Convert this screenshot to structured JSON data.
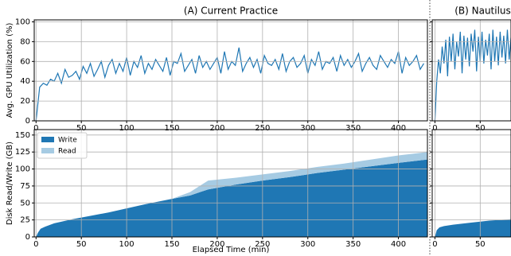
{
  "chart_data": [
    {
      "type": "line",
      "title": "(A) Current Practice",
      "ylabel": "Avg. GPU Utilization (%)",
      "x": [
        0,
        4,
        8,
        12,
        16,
        20,
        24,
        28,
        32,
        36,
        40,
        44,
        48,
        52,
        56,
        60,
        64,
        68,
        72,
        76,
        80,
        84,
        88,
        92,
        96,
        100,
        104,
        108,
        112,
        116,
        120,
        124,
        128,
        132,
        136,
        140,
        144,
        148,
        152,
        156,
        160,
        164,
        168,
        172,
        176,
        180,
        184,
        188,
        192,
        196,
        200,
        204,
        208,
        212,
        216,
        220,
        224,
        228,
        232,
        236,
        240,
        244,
        248,
        252,
        256,
        260,
        264,
        268,
        272,
        276,
        280,
        284,
        288,
        292,
        296,
        300,
        304,
        308,
        312,
        316,
        320,
        324,
        328,
        332,
        336,
        340,
        344,
        348,
        352,
        356,
        360,
        364,
        368,
        372,
        376,
        380,
        384,
        388,
        392,
        396,
        400,
        404,
        408,
        412,
        416,
        420,
        424,
        428
      ],
      "values": [
        0,
        34,
        38,
        36,
        42,
        40,
        48,
        38,
        52,
        44,
        46,
        50,
        42,
        55,
        48,
        58,
        45,
        52,
        60,
        44,
        56,
        62,
        48,
        58,
        50,
        64,
        46,
        60,
        54,
        66,
        48,
        58,
        52,
        62,
        56,
        50,
        64,
        46,
        60,
        58,
        68,
        50,
        56,
        62,
        48,
        66,
        54,
        60,
        52,
        58,
        64,
        48,
        70,
        52,
        60,
        56,
        74,
        50,
        58,
        64,
        54,
        62,
        48,
        66,
        58,
        56,
        62,
        52,
        68,
        50,
        60,
        64,
        54,
        58,
        66,
        48,
        62,
        56,
        70,
        52,
        60,
        58,
        64,
        50,
        66,
        56,
        62,
        54,
        60,
        68,
        50,
        58,
        64,
        56,
        52,
        66,
        60,
        54,
        62,
        58,
        70,
        48,
        64,
        56,
        60,
        66,
        52,
        58
      ],
      "color": "#1f77b4",
      "xlim": [
        -2,
        432
      ],
      "ylim": [
        0,
        102
      ],
      "xticks": [
        0,
        50,
        100,
        150,
        200,
        250,
        300,
        350,
        400
      ],
      "yticks": [
        0,
        20,
        40,
        60,
        80,
        100
      ],
      "grid": true
    },
    {
      "type": "area",
      "xlabel": "Elapsed Time (min)",
      "ylabel": "Disk Read/Write (GB)",
      "x": [
        0,
        2,
        5,
        10,
        20,
        40,
        60,
        80,
        100,
        120,
        150,
        170,
        190,
        220,
        250,
        280,
        310,
        340,
        370,
        400,
        432
      ],
      "series": [
        {
          "name": "Write",
          "color": "#1f77b4",
          "values": [
            0,
            6,
            12,
            15,
            20,
            26,
            31,
            36,
            42,
            48,
            56,
            61,
            70,
            77,
            83,
            88,
            94,
            99,
            104,
            109,
            114
          ]
        },
        {
          "name": "Read",
          "color": "#a6cbe3",
          "values": [
            0,
            0,
            0,
            0,
            0,
            0,
            0,
            0,
            0,
            0,
            0,
            5,
            13,
            10,
            9,
            9,
            9,
            9,
            10,
            11,
            11
          ]
        }
      ],
      "xlim": [
        -2,
        432
      ],
      "ylim": [
        0,
        158
      ],
      "xticks": [
        0,
        50,
        100,
        150,
        200,
        250,
        300,
        350,
        400
      ],
      "yticks": [
        0,
        25,
        50,
        75,
        100,
        125,
        150
      ],
      "grid": true,
      "legend": "upper left"
    },
    {
      "type": "line",
      "title": "(B) Nautilus",
      "x": [
        0,
        2,
        4,
        6,
        8,
        10,
        12,
        14,
        16,
        18,
        20,
        22,
        24,
        26,
        28,
        30,
        32,
        34,
        36,
        38,
        40,
        42,
        44,
        46,
        48,
        50,
        52,
        54,
        56,
        58,
        60,
        62,
        64,
        66,
        68,
        70,
        72,
        74,
        76,
        78,
        80,
        82,
        84
      ],
      "values": [
        0,
        40,
        62,
        48,
        75,
        58,
        82,
        45,
        85,
        60,
        88,
        52,
        80,
        65,
        90,
        48,
        86,
        62,
        84,
        55,
        88,
        70,
        92,
        50,
        85,
        60,
        90,
        58,
        82,
        66,
        88,
        52,
        92,
        60,
        85,
        56,
        90,
        64,
        86,
        58,
        92,
        62,
        84
      ],
      "color": "#1f77b4",
      "xlim": [
        -3,
        84
      ],
      "ylim": [
        0,
        102
      ],
      "xticks": [
        0,
        50
      ],
      "yticks": [
        0,
        20,
        40,
        60,
        80,
        100
      ],
      "grid": true
    },
    {
      "type": "area",
      "x": [
        0,
        2,
        5,
        10,
        20,
        40,
        60,
        84
      ],
      "series": [
        {
          "color": "#1f77b4",
          "values": [
            0,
            10,
            14,
            16,
            18,
            21,
            24,
            26
          ]
        }
      ],
      "xlim": [
        -3,
        84
      ],
      "ylim": [
        0,
        158
      ],
      "xticks": [
        0,
        50
      ],
      "yticks": [
        0,
        25,
        50,
        75,
        100,
        125,
        150
      ],
      "grid": true
    }
  ]
}
